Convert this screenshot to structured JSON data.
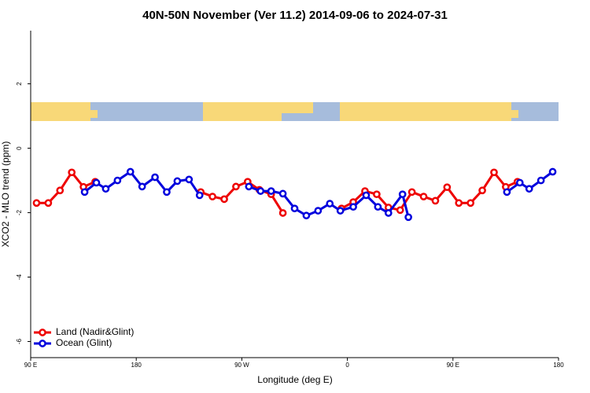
{
  "chart_data": {
    "type": "line",
    "title": "40N-50N November (Ver 11.2)   2014-09-06 to 2024-07-31",
    "xlabel": "Longitude (deg E)",
    "ylabel": "XCO2 - MLO trend (ppm)",
    "xlim": [
      90,
      540
    ],
    "xticks": [
      {
        "value": 90,
        "label": "90 E"
      },
      {
        "value": 180,
        "label": "180"
      },
      {
        "value": 270,
        "label": "90 W"
      },
      {
        "value": 360,
        "label": "0"
      },
      {
        "value": 450,
        "label": "90 E"
      },
      {
        "value": 540,
        "label": "180"
      }
    ],
    "ylim": [
      -6.5,
      3.65
    ],
    "yticks": [
      -6,
      -4,
      -2,
      0,
      2
    ],
    "legend": "bottom-left",
    "series": [
      {
        "name": "Land (Nadir&Glint)",
        "color": "#ee0000",
        "x": [
          95,
          105,
          115,
          125,
          135,
          145,
          190,
          235,
          245,
          255,
          265,
          275,
          285,
          295,
          305,
          325,
          355,
          365,
          375,
          385,
          395,
          405,
          415,
          425,
          435,
          445,
          455,
          465,
          475,
          485,
          495,
          505
        ],
        "values": [
          -1.7,
          -1.7,
          -1.31,
          -0.75,
          -1.2,
          -1.04,
          null,
          -1.36,
          -1.5,
          -1.58,
          -1.19,
          -1.04,
          -1.29,
          -1.43,
          -2.01,
          null,
          -1.87,
          -1.67,
          -1.33,
          -1.43,
          -1.84,
          -1.92,
          -1.36,
          -1.5,
          -1.63,
          -1.21,
          -1.7,
          -1.7,
          -1.31,
          -0.75,
          -1.2,
          -1.04
        ]
      },
      {
        "name": "Ocean (Glint)",
        "color": "#0000dd",
        "x": [
          136,
          146,
          154,
          164,
          175,
          185,
          196,
          206,
          215,
          225,
          234,
          255,
          276,
          286,
          295,
          305,
          315,
          325,
          335,
          345,
          354,
          365,
          376,
          386,
          395,
          407,
          412,
          450,
          496,
          507,
          515,
          525,
          535
        ],
        "values": [
          -1.36,
          -1.07,
          -1.26,
          -1.0,
          -0.73,
          -1.19,
          -0.9,
          -1.36,
          -1.02,
          -0.97,
          -1.46,
          null,
          -1.19,
          -1.33,
          -1.33,
          -1.41,
          -1.87,
          -2.09,
          -1.94,
          -1.72,
          -1.94,
          -1.82,
          -1.46,
          -1.82,
          -2.01,
          -1.43,
          -2.14,
          null,
          -1.36,
          -1.07,
          -1.26,
          -1.0,
          -0.73
        ]
      }
    ]
  }
}
